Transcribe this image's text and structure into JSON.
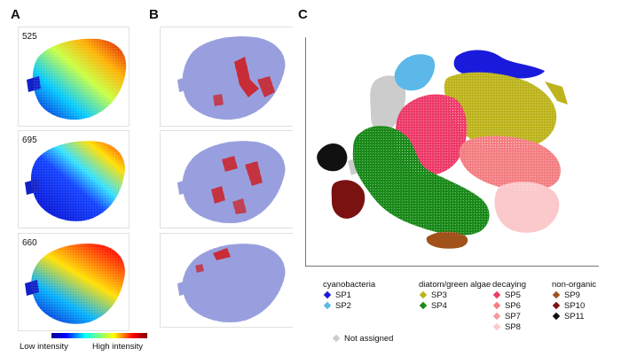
{
  "panels": {
    "a": {
      "letter": "A",
      "labels": [
        "525",
        "695",
        "660"
      ]
    },
    "b": {
      "letter": "B"
    },
    "c": {
      "letter": "C"
    }
  },
  "colorbar": {
    "low": "Low intensity",
    "high": "High intensity"
  },
  "legend": {
    "groups": [
      {
        "title": "cyanobacteria",
        "items": [
          {
            "name": "SP1",
            "color": "#1a1adc"
          },
          {
            "name": "SP2",
            "color": "#5bb8e8"
          }
        ]
      },
      {
        "title": "diatom/green algae",
        "items": [
          {
            "name": "SP3",
            "color": "#bdb41c"
          },
          {
            "name": "SP4",
            "color": "#1a8a1a"
          }
        ]
      },
      {
        "title": "decaying",
        "items": [
          {
            "name": "SP5",
            "color": "#ee3b6a"
          },
          {
            "name": "SP6",
            "color": "#f47f82"
          },
          {
            "name": "SP7",
            "color": "#f59aa0"
          },
          {
            "name": "SP8",
            "color": "#fbc9cc"
          }
        ]
      },
      {
        "title": "non-organic",
        "items": [
          {
            "name": "SP9",
            "color": "#a0521a"
          },
          {
            "name": "SP10",
            "color": "#7a1212"
          },
          {
            "name": "SP11",
            "color": "#111111"
          }
        ]
      }
    ],
    "unassigned": {
      "name": "Not assigned",
      "color": "#cccccc"
    }
  },
  "chart_data": {
    "type": "scatter",
    "clusters": [
      "SP1",
      "SP2",
      "SP3",
      "SP4",
      "SP5",
      "SP6",
      "SP7",
      "SP8",
      "SP9",
      "SP10",
      "SP11",
      "Not assigned"
    ]
  }
}
